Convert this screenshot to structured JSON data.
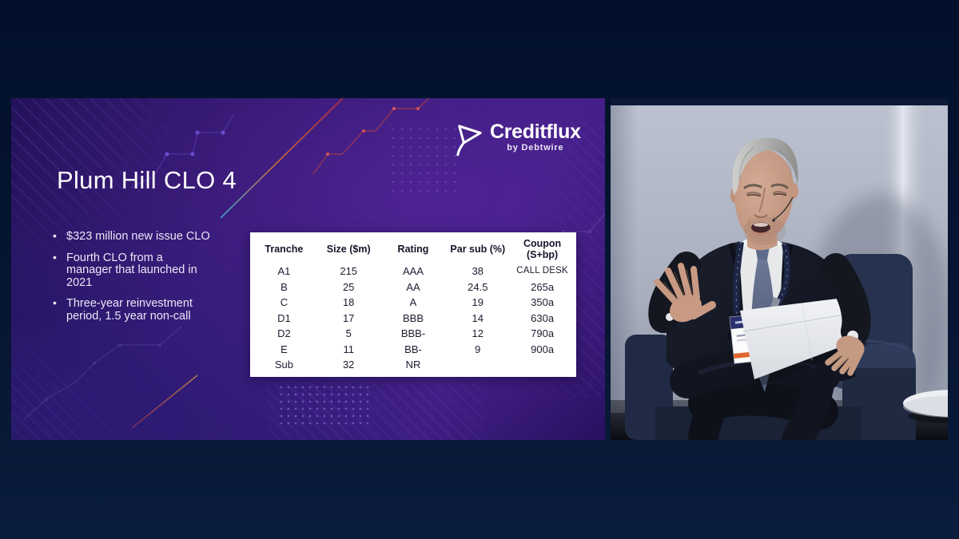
{
  "slide": {
    "title": "Plum Hill CLO 4",
    "logo": {
      "name": "Creditflux",
      "tagline": "by Debtwire"
    },
    "bullets": {
      "b1_l1": "$323 million new issue CLO",
      "b2_l1": "Fourth CLO from a",
      "b2_l2": "manager that launched in",
      "b2_l3": "2021",
      "b3_l1": "Three-year reinvestment",
      "b3_l2": "period, 1.5 year non-call"
    },
    "table": {
      "headers": [
        {
          "l1": "Tranche"
        },
        {
          "l1": "Size ($m)"
        },
        {
          "l1": "Rating"
        },
        {
          "l1": "Par sub (%)"
        },
        {
          "l1": "Coupon",
          "l2": "(S+bp)"
        }
      ],
      "rows": [
        [
          "A1",
          "215",
          "AAA",
          "38",
          "CALL DESK"
        ],
        [
          "B",
          "25",
          "AA",
          "24.5",
          "265a"
        ],
        [
          "C",
          "18",
          "A",
          "19",
          "350a"
        ],
        [
          "D1",
          "17",
          "BBB",
          "14",
          "630a"
        ],
        [
          "D2",
          "5",
          "BBB-",
          "12",
          "790a"
        ],
        [
          "E",
          "11",
          "BB-",
          "9",
          "900a"
        ],
        [
          "Sub",
          "32",
          "NR",
          "",
          ""
        ]
      ]
    }
  },
  "video": {
    "scene": "Grey-haired panel speaker in dark navy suit and patterned tie, seated in a navy velvet armchair, gesturing with one hand while holding white notes; light grey conference backdrop with a white round side table",
    "lanyard_badge": "white conference badge with navy header and orange stripe"
  },
  "colors": {
    "outer_background": "#071634",
    "slide_background": "#2e1569",
    "table_background": "#ffffff",
    "accent_red_line": "#c23b4e",
    "accent_teal_line": "#3fa7c9",
    "logo_white": "#ffffff",
    "badge_stripe_orange": "#e2652e",
    "suit_navy": "#171a26",
    "armchair_navy": "#27324e",
    "wall_grey": "#aeb4c2"
  }
}
